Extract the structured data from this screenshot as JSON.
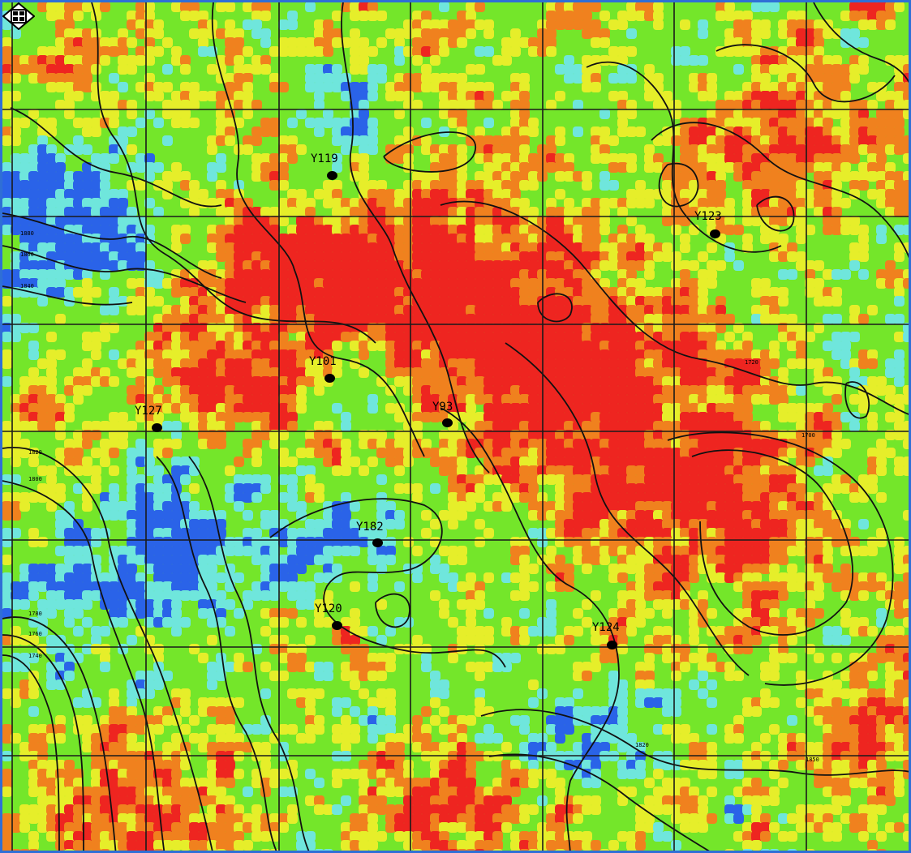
{
  "map": {
    "colors": {
      "blue": "#2a63e8",
      "cyan": "#6fe6dc",
      "green": "#74e62a",
      "yellow": "#e6ee2a",
      "orange": "#f0811e",
      "red": "#ee2520",
      "grid": "#1a1a1a",
      "contour": "#111111",
      "border": "#2f6fd6"
    },
    "legend_icon": "compass-rose-icon",
    "wells": [
      {
        "id": "Y119"
      },
      {
        "id": "Y123"
      },
      {
        "id": "Y101"
      },
      {
        "id": "Y127"
      },
      {
        "id": "Y93"
      },
      {
        "id": "Y182"
      },
      {
        "id": "Y120"
      },
      {
        "id": "Y124"
      }
    ],
    "contour_labels": [
      "1880",
      "1860",
      "1840",
      "1820",
      "1800",
      "1780",
      "1760",
      "1740",
      "1720",
      "1700",
      "1820",
      "1850"
    ]
  }
}
